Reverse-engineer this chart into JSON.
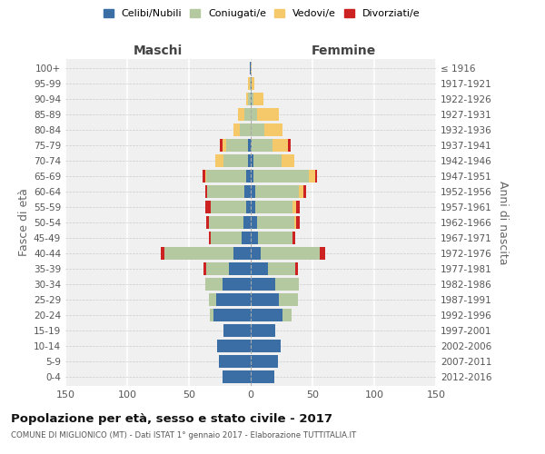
{
  "age_groups": [
    "0-4",
    "5-9",
    "10-14",
    "15-19",
    "20-24",
    "25-29",
    "30-34",
    "35-39",
    "40-44",
    "45-49",
    "50-54",
    "55-59",
    "60-64",
    "65-69",
    "70-74",
    "75-79",
    "80-84",
    "85-89",
    "90-94",
    "95-99",
    "100+"
  ],
  "birth_years": [
    "2012-2016",
    "2007-2011",
    "2002-2006",
    "1997-2001",
    "1992-1996",
    "1987-1991",
    "1982-1986",
    "1977-1981",
    "1972-1976",
    "1967-1971",
    "1962-1966",
    "1957-1961",
    "1952-1956",
    "1947-1951",
    "1942-1946",
    "1937-1941",
    "1932-1936",
    "1927-1931",
    "1922-1926",
    "1917-1921",
    "≤ 1916"
  ],
  "colors": {
    "celibi": "#3a6ea5",
    "coniugati": "#b5c9a0",
    "vedovi": "#f5c96a",
    "divorziati": "#cc2222"
  },
  "males": {
    "celibi": [
      23,
      26,
      27,
      22,
      30,
      28,
      23,
      18,
      14,
      7,
      6,
      4,
      5,
      4,
      2,
      2,
      0,
      0,
      0,
      0,
      1
    ],
    "coniugati": [
      0,
      0,
      0,
      0,
      3,
      6,
      14,
      18,
      56,
      25,
      28,
      28,
      30,
      32,
      20,
      18,
      9,
      5,
      2,
      1,
      0
    ],
    "vedovi": [
      0,
      0,
      0,
      0,
      0,
      0,
      0,
      0,
      0,
      0,
      0,
      0,
      0,
      1,
      7,
      3,
      5,
      5,
      2,
      1,
      0
    ],
    "divorziati": [
      0,
      0,
      0,
      0,
      0,
      0,
      0,
      2,
      3,
      2,
      2,
      5,
      2,
      2,
      0,
      2,
      0,
      0,
      0,
      0,
      0
    ]
  },
  "females": {
    "celibi": [
      19,
      22,
      24,
      20,
      26,
      23,
      20,
      14,
      8,
      6,
      5,
      4,
      4,
      2,
      2,
      1,
      0,
      0,
      1,
      1,
      0
    ],
    "coniugati": [
      0,
      0,
      0,
      0,
      7,
      15,
      19,
      22,
      48,
      28,
      30,
      30,
      35,
      45,
      23,
      17,
      11,
      5,
      1,
      0,
      0
    ],
    "vedovi": [
      0,
      0,
      0,
      0,
      0,
      0,
      0,
      0,
      0,
      0,
      2,
      3,
      4,
      5,
      10,
      12,
      15,
      18,
      8,
      2,
      1
    ],
    "divorziati": [
      0,
      0,
      0,
      0,
      0,
      0,
      0,
      2,
      4,
      2,
      3,
      3,
      2,
      2,
      0,
      2,
      0,
      0,
      0,
      0,
      0
    ]
  },
  "xlim": 150,
  "title": "Popolazione per età, sesso e stato civile - 2017",
  "subtitle": "COMUNE DI MIGLIONICO (MT) - Dati ISTAT 1° gennaio 2017 - Elaborazione TUTTITALIA.IT",
  "ylabel_left": "Fasce di età",
  "ylabel_right": "Anni di nascita",
  "xlabel_male": "Maschi",
  "xlabel_female": "Femmine",
  "legend_labels": [
    "Celibi/Nubili",
    "Coniugati/e",
    "Vedovi/e",
    "Divorziati/e"
  ],
  "background": "#f0f0f0"
}
